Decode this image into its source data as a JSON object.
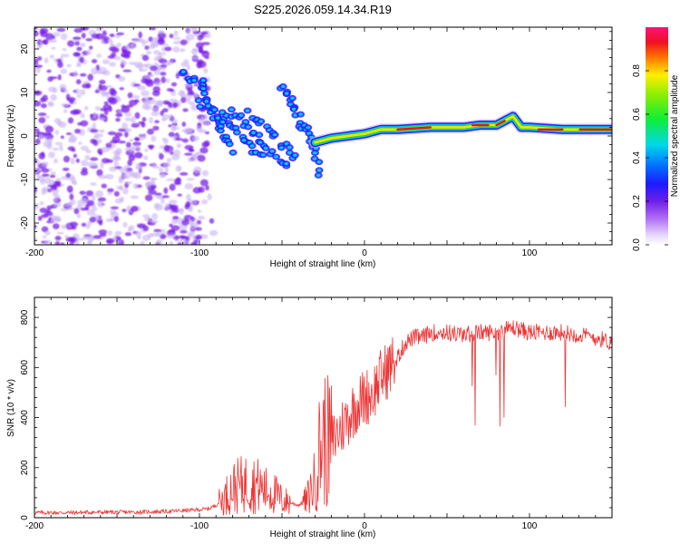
{
  "title": "S225.2026.059.14.34.R19",
  "colors": {
    "snr_line": "#ee3333",
    "scatter_violet": "#7a1fe8",
    "scatter_light": "#c9b3f3",
    "ridge_red": "#e8102a",
    "ridge_yellow": "#ffe000",
    "ridge_green": "#22dd33",
    "ridge_cyan": "#00ccee",
    "ridge_blue": "#2222ff"
  },
  "chart_data": [
    {
      "type": "heatmap",
      "name": "spectrogram",
      "title": "",
      "xlabel": "Height of straight line (km)",
      "ylabel": "Frequency (Hz)",
      "xlim": [
        -200,
        150
      ],
      "ylim": [
        -25,
        25
      ],
      "xticks": [
        "-200",
        "-100",
        "0",
        "100"
      ],
      "xtick_values": [
        -200,
        -100,
        0,
        100
      ],
      "yticks": [
        "-20",
        "-10",
        "0",
        "10",
        "20"
      ],
      "ytick_values": [
        -20,
        -10,
        0,
        10,
        20
      ],
      "description_regions": [
        {
          "region": "noise",
          "x_range": [
            -200,
            -95
          ],
          "freq_range": [
            -25,
            25
          ],
          "amplitude": [
            0.0,
            0.2
          ]
        },
        {
          "region": "dispersed_features",
          "x_range": [
            -110,
            -25
          ],
          "freq_range": [
            -10,
            15
          ],
          "amplitude": [
            0.15,
            0.4
          ]
        },
        {
          "region": "carrier",
          "x_range": [
            -30,
            150
          ],
          "freq_range": [
            -1,
            4
          ],
          "amplitude": [
            0.3,
            1.0
          ]
        }
      ],
      "carrier_track": {
        "x": [
          -30,
          -20,
          -10,
          0,
          10,
          20,
          40,
          60,
          70,
          80,
          85,
          90,
          95,
          100,
          120,
          150
        ],
        "freq": [
          -1.5,
          -0.5,
          0,
          0.5,
          1.5,
          1.5,
          2,
          2,
          2.5,
          2.5,
          3.5,
          4.5,
          2,
          2,
          1.5,
          1.5
        ]
      },
      "colorbar": {
        "label": "Normalized spectral amplitude",
        "range": [
          0,
          1
        ],
        "ticks": [
          "0.0",
          "0.2",
          "0.4",
          "0.6",
          "0.8"
        ],
        "tick_values": [
          0.0,
          0.2,
          0.4,
          0.6,
          0.8
        ]
      }
    },
    {
      "type": "line",
      "name": "snr",
      "title": "",
      "xlabel": "Height of straight line (km)",
      "ylabel": "SNR (10 * v/v)",
      "xlim": [
        -200,
        150
      ],
      "ylim": [
        0,
        880
      ],
      "xticks": [
        "-200",
        "-100",
        "0",
        "100"
      ],
      "xtick_values": [
        -200,
        -100,
        0,
        100
      ],
      "yticks": [
        "0",
        "200",
        "400",
        "600",
        "800"
      ],
      "ytick_values": [
        0,
        200,
        400,
        600,
        800
      ],
      "series": [
        {
          "name": "SNR",
          "x": [
            -200,
            -180,
            -160,
            -140,
            -120,
            -105,
            -95,
            -90,
            -85,
            -80,
            -75,
            -70,
            -65,
            -60,
            -55,
            -50,
            -45,
            -40,
            -35,
            -30,
            -28,
            -25,
            -22,
            -20,
            -15,
            -10,
            -5,
            0,
            5,
            10,
            15,
            20,
            25,
            30,
            35,
            40,
            50,
            60,
            70,
            80,
            90,
            95,
            100,
            110,
            120,
            130,
            140,
            150
          ],
          "y": [
            20,
            20,
            22,
            22,
            25,
            30,
            35,
            50,
            80,
            120,
            130,
            140,
            130,
            110,
            100,
            70,
            60,
            50,
            70,
            150,
            250,
            320,
            300,
            300,
            350,
            400,
            450,
            480,
            500,
            560,
            600,
            640,
            700,
            720,
            720,
            740,
            740,
            730,
            740,
            740,
            760,
            750,
            740,
            740,
            740,
            730,
            720,
            700
          ]
        }
      ]
    }
  ]
}
